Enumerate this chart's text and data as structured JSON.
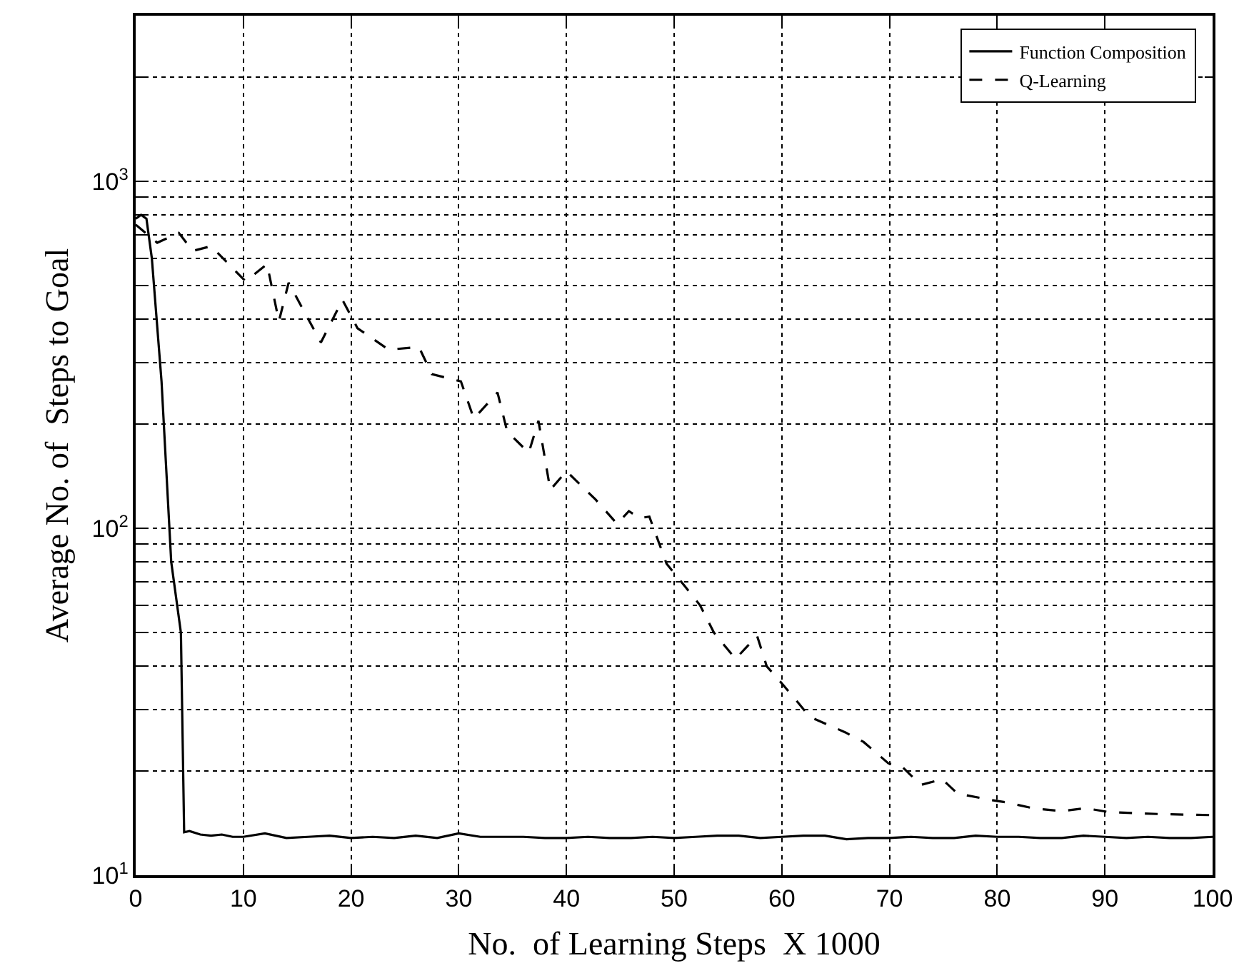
{
  "chart_data": {
    "type": "line",
    "xlabel": "No.  of Learning Steps  X 1000",
    "ylabel": "Average No. of  Steps to Goal",
    "log": "y",
    "grid": true,
    "legend": "top right",
    "xlim": [
      0,
      100
    ],
    "xticks": [
      0,
      10,
      20,
      30,
      40,
      50,
      60,
      70,
      80,
      90,
      100
    ],
    "ylim": [
      10,
      3000
    ],
    "yticks": [
      {
        "value": 10,
        "label": "10$^{1}$"
      },
      {
        "value": 20,
        "label": null
      },
      {
        "value": 30,
        "label": null
      },
      {
        "value": 40,
        "label": null
      },
      {
        "value": 50,
        "label": null
      },
      {
        "value": 60,
        "label": null
      },
      {
        "value": 70,
        "label": null
      },
      {
        "value": 80,
        "label": null
      },
      {
        "value": 90,
        "label": null
      },
      {
        "value": 100,
        "label": "10$^{2}$"
      },
      {
        "value": 200,
        "label": null
      },
      {
        "value": 300,
        "label": null
      },
      {
        "value": 400,
        "label": null
      },
      {
        "value": 500,
        "label": null
      },
      {
        "value": 600,
        "label": null
      },
      {
        "value": 700,
        "label": null
      },
      {
        "value": 800,
        "label": null
      },
      {
        "value": 900,
        "label": null
      },
      {
        "value": 1000,
        "label": "10$^{3}$"
      },
      {
        "value": 2000,
        "label": null
      }
    ],
    "series": [
      {
        "name": "Function Composition",
        "color": "#000000",
        "line_style": "solid",
        "x": [
          0,
          0.5,
          1,
          1.5,
          2.4,
          3.3,
          4.2,
          4.5,
          5,
          6,
          7,
          8,
          9,
          10,
          12,
          14,
          16,
          18,
          20,
          22,
          24,
          26,
          28,
          30,
          32,
          34,
          36,
          38,
          40,
          42,
          44,
          46,
          48,
          50,
          52,
          54,
          56,
          58,
          60,
          62,
          64,
          66,
          68,
          70,
          72,
          74,
          76,
          78,
          80,
          82,
          84,
          86,
          88,
          90,
          92,
          94,
          96,
          98,
          100
        ],
        "values": [
          780,
          800,
          780,
          600,
          265,
          80,
          50,
          13.3,
          13.4,
          13.1,
          13,
          13.1,
          12.9,
          12.9,
          13.2,
          12.8,
          12.9,
          13,
          12.8,
          12.9,
          12.8,
          13,
          12.8,
          13.2,
          12.9,
          12.9,
          12.9,
          12.8,
          12.8,
          12.9,
          12.8,
          12.8,
          12.9,
          12.8,
          12.9,
          13,
          13,
          12.8,
          12.9,
          13,
          13,
          12.7,
          12.8,
          12.8,
          12.9,
          12.8,
          12.8,
          13,
          12.9,
          12.9,
          12.8,
          12.8,
          13,
          12.9,
          12.8,
          12.9,
          12.8,
          12.8,
          12.9
        ]
      },
      {
        "name": "Q-Learning",
        "color": "#000000",
        "line_style": "dashed",
        "x": [
          0,
          2,
          4,
          5.3,
          7,
          10.2,
          12.2,
          13.3,
          14.2,
          17.2,
          19.2,
          20.6,
          23.5,
          26.3,
          27.5,
          30.2,
          31.4,
          33.6,
          34.5,
          36.5,
          37.4,
          38.5,
          40,
          42.7,
          44.7,
          45.8,
          46.8,
          47.7,
          49.3,
          51,
          52.4,
          53.7,
          55.7,
          57.7,
          58.6,
          59.9,
          61.3,
          62.6,
          65.9,
          67.6,
          69.9,
          71.2,
          72.9,
          74.9,
          76.3,
          79.3,
          80.9,
          83.3,
          86,
          88.2,
          90.4,
          95.2,
          100
        ],
        "values": [
          750,
          665,
          710,
          630,
          650,
          515,
          577,
          395,
          510,
          343,
          455,
          377,
          327,
          333,
          278,
          265,
          207,
          246,
          190,
          165,
          204,
          129,
          146,
          121,
          103,
          112,
          107,
          108,
          79,
          68,
          60,
          50,
          42,
          49,
          40,
          36,
          32,
          28.6,
          25.8,
          24.2,
          21,
          20.5,
          18.2,
          18.9,
          17.2,
          16.5,
          16.2,
          15.6,
          15.3,
          15.6,
          15.2,
          15,
          14.9
        ]
      }
    ]
  }
}
